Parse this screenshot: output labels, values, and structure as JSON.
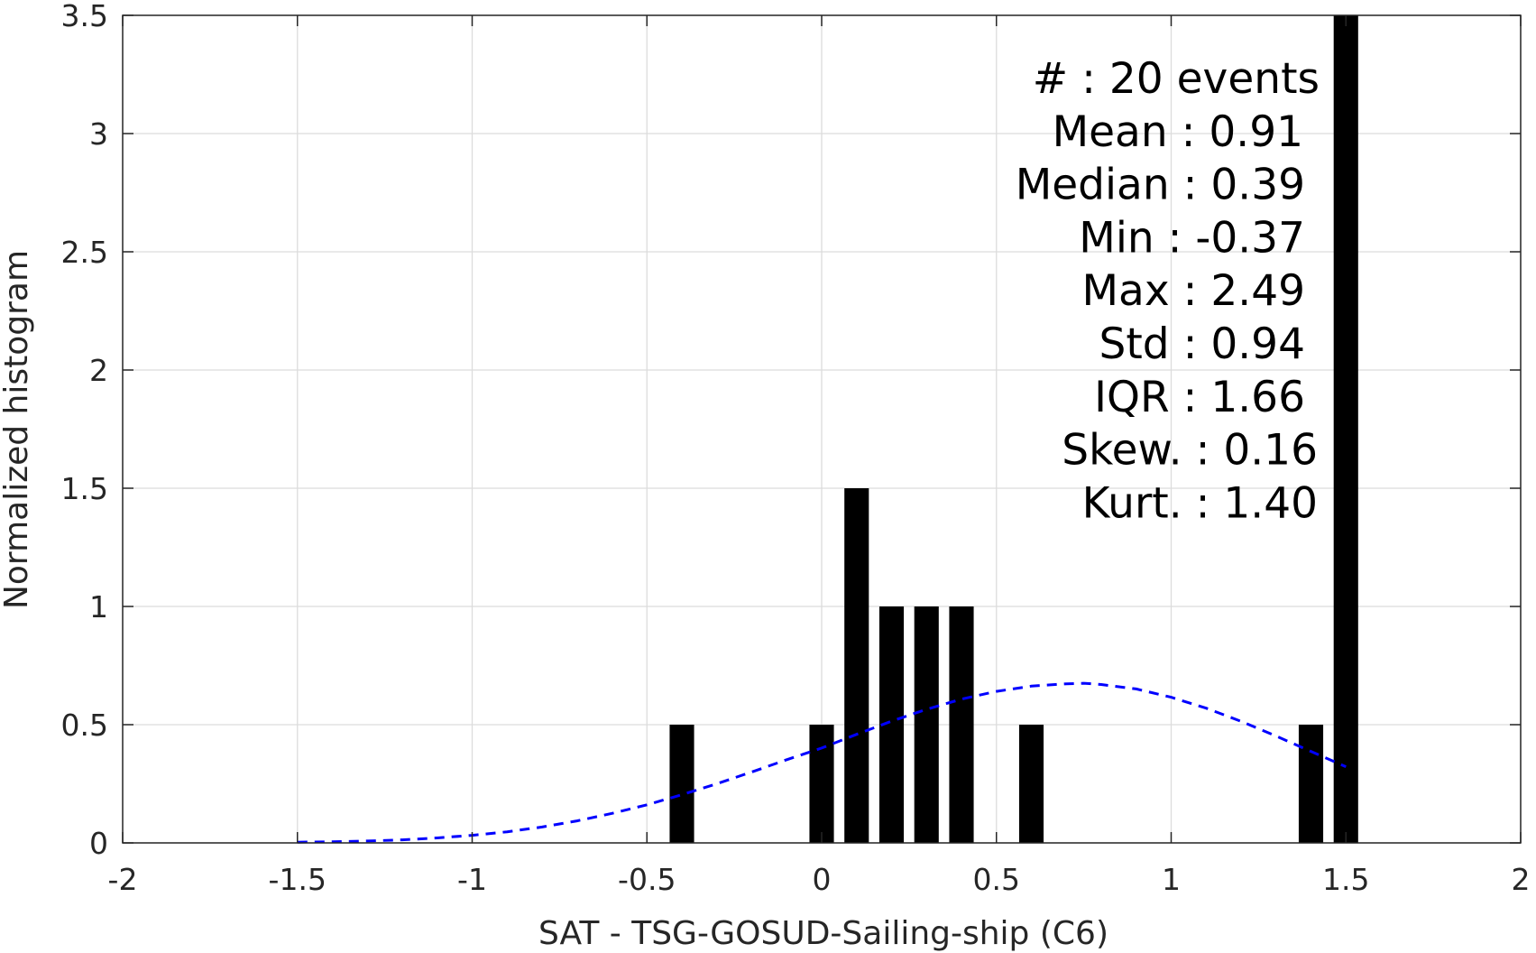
{
  "chart_data": {
    "type": "bar",
    "title": "",
    "xlabel": "SAT - TSG-GOSUD-Sailing-ship (C6)",
    "ylabel": "Normalized histogram",
    "xlim": [
      -2,
      2
    ],
    "ylim": [
      0,
      3.5
    ],
    "x_ticks": [
      -2,
      -1.5,
      -1,
      -0.5,
      0,
      0.5,
      1,
      1.5,
      2
    ],
    "x_tick_labels": [
      "-2",
      "-1.5",
      "-1",
      "-0.5",
      "0",
      "0.5",
      "1",
      "1.5",
      "2"
    ],
    "y_ticks": [
      0,
      0.5,
      1,
      1.5,
      2,
      2.5,
      3,
      3.5
    ],
    "y_tick_labels": [
      "0",
      "0.5",
      "1",
      "1.5",
      "2",
      "2.5",
      "3",
      "3.5"
    ],
    "grid": true,
    "bar_width": 0.07,
    "bars": [
      {
        "x": -0.4,
        "value": 0.5
      },
      {
        "x": 0.0,
        "value": 0.5
      },
      {
        "x": 0.1,
        "value": 1.5
      },
      {
        "x": 0.2,
        "value": 1.0
      },
      {
        "x": 0.3,
        "value": 1.0
      },
      {
        "x": 0.4,
        "value": 1.0
      },
      {
        "x": 0.6,
        "value": 0.5
      },
      {
        "x": 1.4,
        "value": 0.5
      },
      {
        "x": 1.5,
        "value": 3.5
      }
    ],
    "fit_curve": {
      "style": "dashed",
      "color": "#0000ff",
      "x": [
        -1.5,
        -1.4,
        -1.3,
        -1.2,
        -1.1,
        -1.0,
        -0.9,
        -0.8,
        -0.7,
        -0.6,
        -0.5,
        -0.4,
        -0.3,
        -0.2,
        -0.1,
        0.0,
        0.1,
        0.2,
        0.3,
        0.4,
        0.5,
        0.6,
        0.7,
        0.75,
        0.8,
        0.9,
        1.0,
        1.1,
        1.2,
        1.3,
        1.4,
        1.5
      ],
      "y": [
        0.003,
        0.005,
        0.008,
        0.013,
        0.021,
        0.032,
        0.047,
        0.067,
        0.093,
        0.125,
        0.161,
        0.204,
        0.25,
        0.3,
        0.352,
        0.401,
        0.459,
        0.515,
        0.565,
        0.608,
        0.641,
        0.663,
        0.673,
        0.675,
        0.67,
        0.651,
        0.616,
        0.57,
        0.514,
        0.452,
        0.387,
        0.322
      ]
    },
    "bar_color": "#000000",
    "stats_lines": [
      "#  : 20 events",
      "Mean : 0.91",
      "Median : 0.39",
      "Min : -0.37",
      "Max : 2.49",
      "Std : 0.94",
      "IQR : 1.66",
      "Skew. : 0.16",
      "Kurt. : 1.40"
    ]
  }
}
